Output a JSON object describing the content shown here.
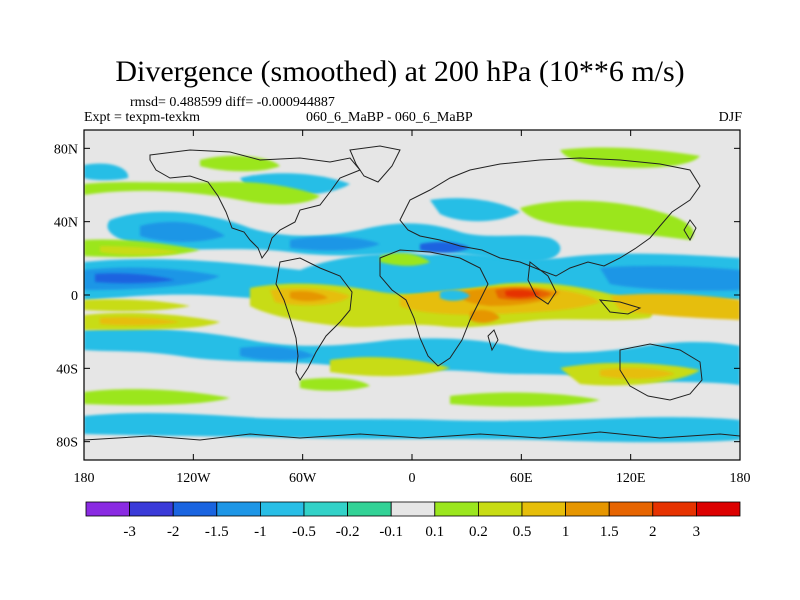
{
  "title": "Divergence (smoothed) at 200 hPa (10**6 m/s)",
  "stats": "rmsd= 0.488599 diff= -0.000944887",
  "experiment": "Expt = texpm-texkm",
  "comparison": "060_6_MaBP - 060_6_MaBP",
  "season": "DJF",
  "map": {
    "projection": "cylindrical equidistant",
    "lon_range": [
      -180,
      180
    ],
    "lat_range": [
      -90,
      90
    ],
    "x_ticks": [
      {
        "value": -180,
        "label": "180"
      },
      {
        "value": -120,
        "label": "120W"
      },
      {
        "value": -60,
        "label": "60W"
      },
      {
        "value": 0,
        "label": "0"
      },
      {
        "value": 60,
        "label": "60E"
      },
      {
        "value": 120,
        "label": "120E"
      },
      {
        "value": 180,
        "label": "180"
      }
    ],
    "y_ticks": [
      {
        "value": 80,
        "label": "80N"
      },
      {
        "value": 40,
        "label": "40N"
      },
      {
        "value": 0,
        "label": "0"
      },
      {
        "value": -40,
        "label": "40S"
      },
      {
        "value": -80,
        "label": "80S"
      }
    ]
  },
  "colorbar": {
    "levels": [
      "-3",
      "-2",
      "-1.5",
      "-1",
      "-0.5",
      "-0.2",
      "-0.1",
      "0.1",
      "0.2",
      "0.5",
      "1",
      "1.5",
      "2",
      "3"
    ],
    "colors": [
      "#8a2be2",
      "#3a3ad8",
      "#1a64e0",
      "#1e96e6",
      "#28bee6",
      "#32d2c8",
      "#32d296",
      "#e6e6e6",
      "#9be61e",
      "#c8dc14",
      "#e6be0a",
      "#e69600",
      "#e66400",
      "#e63200",
      "#dc0000"
    ]
  },
  "field_colors": {
    "neg_strong": "#1a64e0",
    "neg_mid": "#1e96e6",
    "neg_weak": "#28bee6",
    "neg_faint": "#32d2c8",
    "neutral": "#e6e6e6",
    "pos_faint": "#9be61e",
    "pos_weak": "#c8dc14",
    "pos_mid": "#e6be0a",
    "pos_strong": "#e69600",
    "pos_max": "#e66400",
    "pos_peak": "#e63200"
  }
}
